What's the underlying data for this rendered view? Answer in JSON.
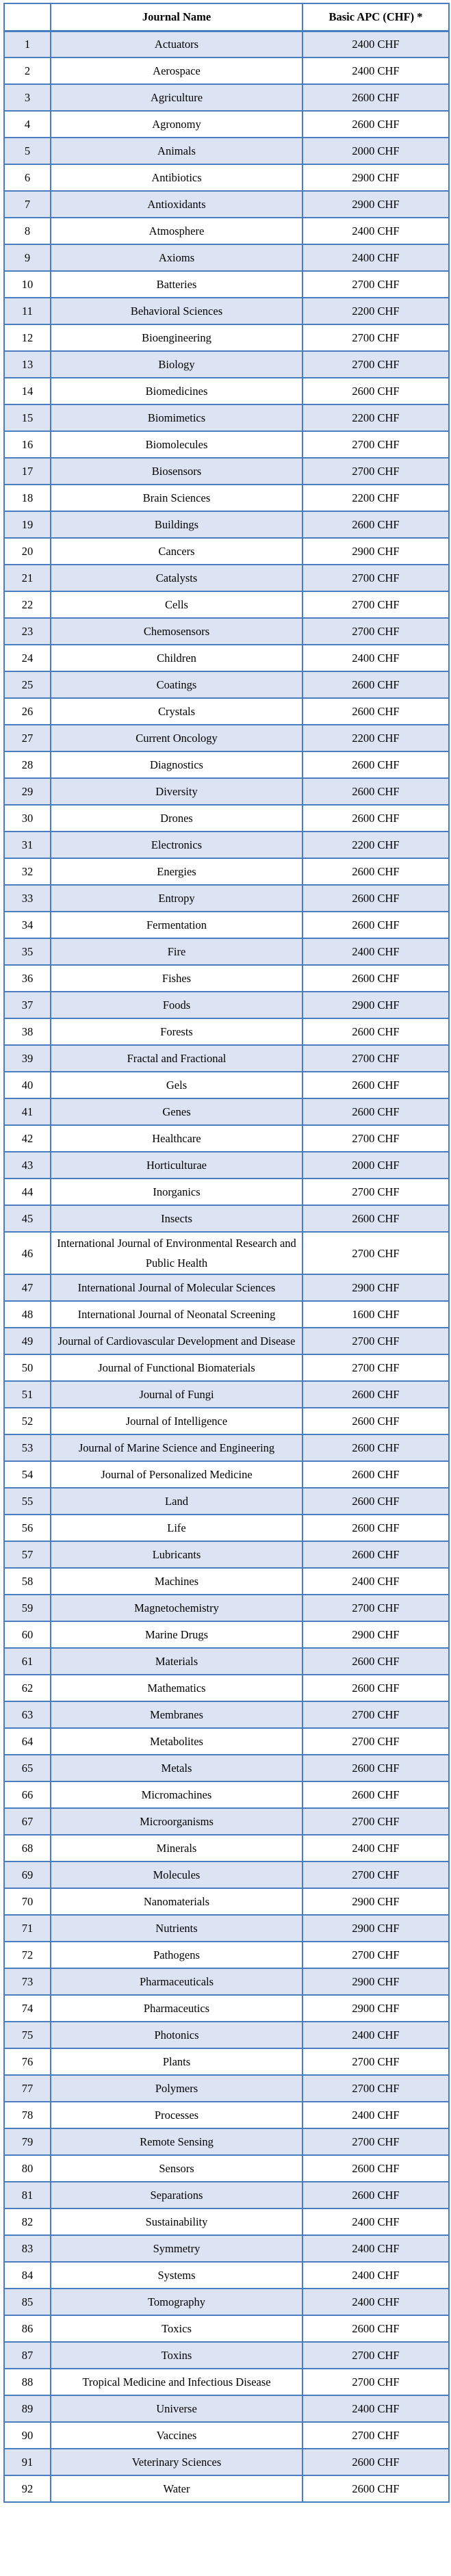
{
  "table": {
    "headers": {
      "index": "",
      "journal": "Journal Name",
      "apc": "Basic APC (CHF) *"
    },
    "rows": [
      {
        "n": "1",
        "journal": "Actuators",
        "apc": "2400 CHF"
      },
      {
        "n": "2",
        "journal": "Aerospace",
        "apc": "2400 CHF"
      },
      {
        "n": "3",
        "journal": "Agriculture",
        "apc": "2600 CHF"
      },
      {
        "n": "4",
        "journal": "Agronomy",
        "apc": "2600 CHF"
      },
      {
        "n": "5",
        "journal": "Animals",
        "apc": "2000 CHF"
      },
      {
        "n": "6",
        "journal": "Antibiotics",
        "apc": "2900 CHF"
      },
      {
        "n": "7",
        "journal": "Antioxidants",
        "apc": "2900 CHF"
      },
      {
        "n": "8",
        "journal": "Atmosphere",
        "apc": "2400 CHF"
      },
      {
        "n": "9",
        "journal": "Axioms",
        "apc": "2400 CHF"
      },
      {
        "n": "10",
        "journal": "Batteries",
        "apc": "2700 CHF"
      },
      {
        "n": "11",
        "journal": "Behavioral Sciences",
        "apc": "2200 CHF"
      },
      {
        "n": "12",
        "journal": "Bioengineering",
        "apc": "2700 CHF"
      },
      {
        "n": "13",
        "journal": "Biology",
        "apc": "2700 CHF"
      },
      {
        "n": "14",
        "journal": "Biomedicines",
        "apc": "2600 CHF"
      },
      {
        "n": "15",
        "journal": "Biomimetics",
        "apc": "2200 CHF"
      },
      {
        "n": "16",
        "journal": "Biomolecules",
        "apc": "2700 CHF"
      },
      {
        "n": "17",
        "journal": "Biosensors",
        "apc": "2700 CHF"
      },
      {
        "n": "18",
        "journal": "Brain Sciences",
        "apc": "2200 CHF"
      },
      {
        "n": "19",
        "journal": "Buildings",
        "apc": "2600 CHF"
      },
      {
        "n": "20",
        "journal": "Cancers",
        "apc": "2900 CHF"
      },
      {
        "n": "21",
        "journal": "Catalysts",
        "apc": "2700 CHF"
      },
      {
        "n": "22",
        "journal": "Cells",
        "apc": "2700 CHF"
      },
      {
        "n": "23",
        "journal": "Chemosensors",
        "apc": "2700 CHF"
      },
      {
        "n": "24",
        "journal": "Children",
        "apc": "2400 CHF"
      },
      {
        "n": "25",
        "journal": "Coatings",
        "apc": "2600 CHF"
      },
      {
        "n": "26",
        "journal": "Crystals",
        "apc": "2600 CHF"
      },
      {
        "n": "27",
        "journal": "Current Oncology",
        "apc": "2200 CHF"
      },
      {
        "n": "28",
        "journal": "Diagnostics",
        "apc": "2600 CHF"
      },
      {
        "n": "29",
        "journal": "Diversity",
        "apc": "2600 CHF"
      },
      {
        "n": "30",
        "journal": "Drones",
        "apc": "2600 CHF"
      },
      {
        "n": "31",
        "journal": "Electronics",
        "apc": "2200 CHF"
      },
      {
        "n": "32",
        "journal": "Energies",
        "apc": "2600 CHF"
      },
      {
        "n": "33",
        "journal": "Entropy",
        "apc": "2600 CHF"
      },
      {
        "n": "34",
        "journal": "Fermentation",
        "apc": "2600 CHF"
      },
      {
        "n": "35",
        "journal": "Fire",
        "apc": "2400 CHF"
      },
      {
        "n": "36",
        "journal": "Fishes",
        "apc": "2600 CHF"
      },
      {
        "n": "37",
        "journal": "Foods",
        "apc": "2900 CHF"
      },
      {
        "n": "38",
        "journal": "Forests",
        "apc": "2600 CHF"
      },
      {
        "n": "39",
        "journal": "Fractal and Fractional",
        "apc": "2700 CHF"
      },
      {
        "n": "40",
        "journal": "Gels",
        "apc": "2600 CHF"
      },
      {
        "n": "41",
        "journal": "Genes",
        "apc": "2600 CHF"
      },
      {
        "n": "42",
        "journal": "Healthcare",
        "apc": "2700 CHF"
      },
      {
        "n": "43",
        "journal": "Horticulturae",
        "apc": "2000 CHF"
      },
      {
        "n": "44",
        "journal": "Inorganics",
        "apc": "2700 CHF"
      },
      {
        "n": "45",
        "journal": "Insects",
        "apc": "2600 CHF"
      },
      {
        "n": "46",
        "journal": "International Journal of Environmental Research and Public Health",
        "apc": "2700 CHF"
      },
      {
        "n": "47",
        "journal": "International Journal of Molecular Sciences",
        "apc": "2900 CHF"
      },
      {
        "n": "48",
        "journal": "International Journal of Neonatal Screening",
        "apc": "1600 CHF"
      },
      {
        "n": "49",
        "journal": "Journal of Cardiovascular Development and Disease",
        "apc": "2700 CHF"
      },
      {
        "n": "50",
        "journal": "Journal of Functional Biomaterials",
        "apc": "2700 CHF"
      },
      {
        "n": "51",
        "journal": "Journal of Fungi",
        "apc": "2600 CHF"
      },
      {
        "n": "52",
        "journal": "Journal of Intelligence",
        "apc": "2600 CHF"
      },
      {
        "n": "53",
        "journal": "Journal of Marine Science and Engineering",
        "apc": "2600 CHF"
      },
      {
        "n": "54",
        "journal": "Journal of Personalized Medicine",
        "apc": "2600 CHF"
      },
      {
        "n": "55",
        "journal": "Land",
        "apc": "2600 CHF"
      },
      {
        "n": "56",
        "journal": "Life",
        "apc": "2600 CHF"
      },
      {
        "n": "57",
        "journal": "Lubricants",
        "apc": "2600 CHF"
      },
      {
        "n": "58",
        "journal": "Machines",
        "apc": "2400 CHF"
      },
      {
        "n": "59",
        "journal": "Magnetochemistry",
        "apc": "2700 CHF"
      },
      {
        "n": "60",
        "journal": "Marine Drugs",
        "apc": "2900 CHF"
      },
      {
        "n": "61",
        "journal": "Materials",
        "apc": "2600 CHF"
      },
      {
        "n": "62",
        "journal": "Mathematics",
        "apc": "2600 CHF"
      },
      {
        "n": "63",
        "journal": "Membranes",
        "apc": "2700 CHF"
      },
      {
        "n": "64",
        "journal": "Metabolites",
        "apc": "2700 CHF"
      },
      {
        "n": "65",
        "journal": "Metals",
        "apc": "2600 CHF"
      },
      {
        "n": "66",
        "journal": "Micromachines",
        "apc": "2600 CHF"
      },
      {
        "n": "67",
        "journal": "Microorganisms",
        "apc": "2700 CHF"
      },
      {
        "n": "68",
        "journal": "Minerals",
        "apc": "2400 CHF"
      },
      {
        "n": "69",
        "journal": "Molecules",
        "apc": "2700 CHF"
      },
      {
        "n": "70",
        "journal": "Nanomaterials",
        "apc": "2900 CHF"
      },
      {
        "n": "71",
        "journal": "Nutrients",
        "apc": "2900 CHF"
      },
      {
        "n": "72",
        "journal": "Pathogens",
        "apc": "2700 CHF"
      },
      {
        "n": "73",
        "journal": "Pharmaceuticals",
        "apc": "2900 CHF"
      },
      {
        "n": "74",
        "journal": "Pharmaceutics",
        "apc": "2900 CHF"
      },
      {
        "n": "75",
        "journal": "Photonics",
        "apc": "2400 CHF"
      },
      {
        "n": "76",
        "journal": "Plants",
        "apc": "2700 CHF"
      },
      {
        "n": "77",
        "journal": "Polymers",
        "apc": "2700 CHF"
      },
      {
        "n": "78",
        "journal": "Processes",
        "apc": "2400 CHF"
      },
      {
        "n": "79",
        "journal": "Remote Sensing",
        "apc": "2700 CHF"
      },
      {
        "n": "80",
        "journal": "Sensors",
        "apc": "2600 CHF"
      },
      {
        "n": "81",
        "journal": "Separations",
        "apc": "2600 CHF"
      },
      {
        "n": "82",
        "journal": "Sustainability",
        "apc": "2400 CHF"
      },
      {
        "n": "83",
        "journal": "Symmetry",
        "apc": "2400 CHF"
      },
      {
        "n": "84",
        "journal": "Systems",
        "apc": "2400 CHF"
      },
      {
        "n": "85",
        "journal": "Tomography",
        "apc": "2400 CHF"
      },
      {
        "n": "86",
        "journal": "Toxics",
        "apc": "2600 CHF"
      },
      {
        "n": "87",
        "journal": "Toxins",
        "apc": "2700 CHF"
      },
      {
        "n": "88",
        "journal": "Tropical Medicine and Infectious Disease",
        "apc": "2700 CHF"
      },
      {
        "n": "89",
        "journal": "Universe",
        "apc": "2400 CHF"
      },
      {
        "n": "90",
        "journal": "Vaccines",
        "apc": "2700 CHF"
      },
      {
        "n": "91",
        "journal": "Veterinary Sciences",
        "apc": "2600 CHF"
      },
      {
        "n": "92",
        "journal": "Water",
        "apc": "2600 CHF"
      }
    ]
  },
  "colors": {
    "table_border": "#4a7cc0",
    "alt_row_fill": "#dce3f2",
    "row_fill": "#ffffff",
    "text": "#000000"
  }
}
